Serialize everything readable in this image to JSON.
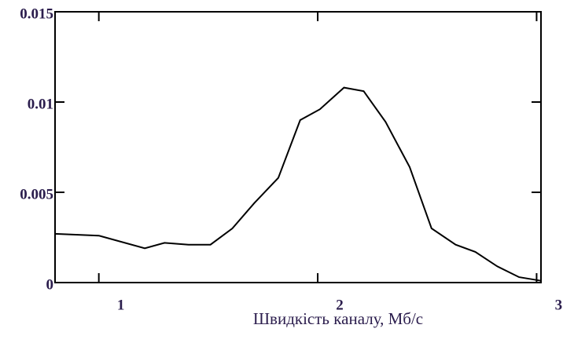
{
  "chart_data": {
    "type": "line",
    "x": [
      0.8,
      1.0,
      1.21,
      1.3,
      1.41,
      1.51,
      1.61,
      1.71,
      1.82,
      1.92,
      2.01,
      2.12,
      2.21,
      2.31,
      2.42,
      2.52,
      2.63,
      2.72,
      2.82,
      2.92,
      3.02
    ],
    "series": [
      {
        "color": "#000000",
        "values": [
          0.0027,
          0.0026,
          0.0019,
          0.0022,
          0.0021,
          0.0021,
          0.003,
          0.0044,
          0.0058,
          0.009,
          0.0096,
          0.0108,
          0.0106,
          0.0089,
          0.0064,
          0.003,
          0.0021,
          0.0017,
          0.0009,
          0.0003,
          0.0001
        ]
      }
    ],
    "xlim": [
      0.8,
      3.02
    ],
    "xticks": [
      1,
      2,
      3
    ],
    "ylim": [
      0,
      0.015
    ],
    "yticks": [
      0,
      0.005,
      0.01,
      0.015
    ],
    "x_label": "Швидкість  каналу, Мб/с"
  }
}
